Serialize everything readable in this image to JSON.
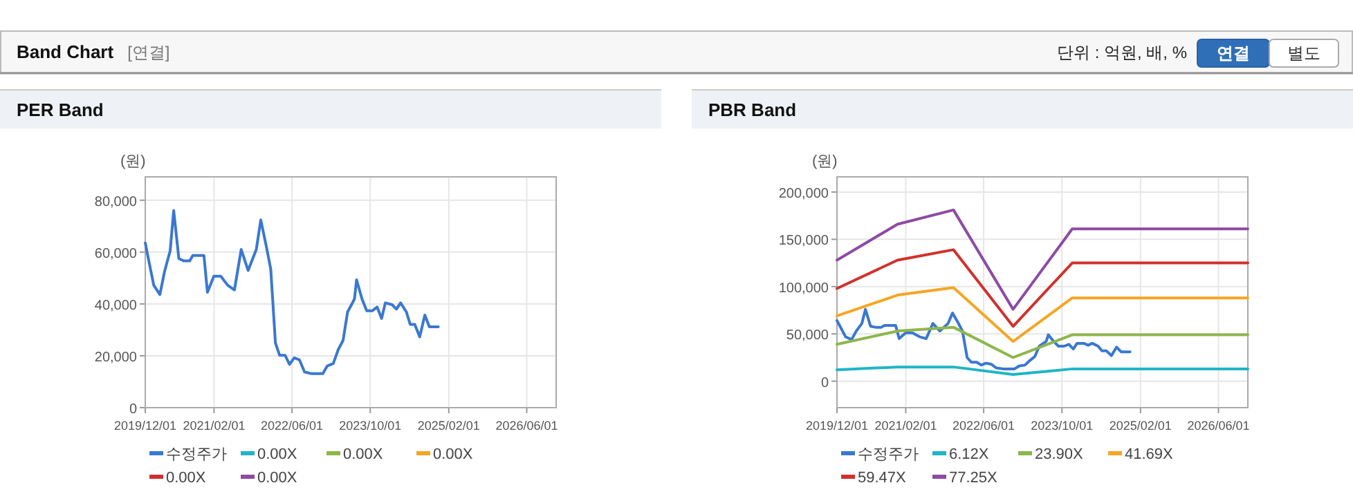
{
  "chart_data": [
    {
      "type": "other",
      "title": "Band Chart",
      "annotations": [
        "[연결]",
        "단위 : 억원, 배, %",
        "연결",
        "별도"
      ]
    },
    {
      "type": "line",
      "title": "PER Band",
      "ylabel": "(원)",
      "grid": true,
      "legend": "bottom",
      "xlim": [
        "2019-12-01",
        "2026-12-01"
      ],
      "xticks": [
        {
          "value": "2019-12-01",
          "label": "2019/12/01"
        },
        {
          "value": "2021-02-01",
          "label": "2021/02/01"
        },
        {
          "value": "2022-06-01",
          "label": "2022/06/01"
        },
        {
          "value": "2023-10-01",
          "label": "2023/10/01"
        },
        {
          "value": "2025-02-01",
          "label": "2025/02/01"
        },
        {
          "value": "2026-06-01",
          "label": "2026/06/01"
        }
      ],
      "ylim": [
        0,
        89000
      ],
      "yticks": [
        0,
        {
          "value": 20000,
          "label": "20,000"
        },
        {
          "value": 40000,
          "label": "40,000"
        },
        {
          "value": 60000,
          "label": "60,000"
        },
        {
          "value": 80000,
          "label": "80,000"
        }
      ],
      "series": [
        {
          "name": "수정주가",
          "color": "#3a78d0",
          "x": [
            "2019-12-01",
            "2019-12-20",
            "2020-01-23",
            "2020-03-01",
            "2020-03-30",
            "2020-05-04",
            "2020-05-26",
            "2020-06-27",
            "2020-07-28",
            "2020-09-03",
            "2020-09-22",
            "2020-11-30",
            "2020-12-22",
            "2021-01-31",
            "2021-03-15",
            "2021-04-27",
            "2021-06-08",
            "2021-07-20",
            "2021-09-01",
            "2021-10-22",
            "2021-11-19",
            "2021-12-23",
            "2022-01-20",
            "2022-02-18",
            "2022-03-16",
            "2022-04-19",
            "2022-05-17",
            "2022-06-15",
            "2022-07-18",
            "2022-08-18",
            "2022-09-30",
            "2022-12-10",
            "2023-01-07",
            "2023-02-13",
            "2023-03-16",
            "2023-04-15",
            "2023-05-13",
            "2023-06-25",
            "2023-07-08",
            "2023-08-11",
            "2023-09-09",
            "2023-10-15",
            "2023-11-13",
            "2023-12-11",
            "2024-01-03",
            "2024-02-14",
            "2024-03-12",
            "2024-04-07",
            "2024-05-13",
            "2024-06-06",
            "2024-07-04",
            "2024-08-04",
            "2024-09-05",
            "2024-10-03",
            "2024-11-28"
          ],
          "values": [
            63500,
            57500,
            47200,
            43600,
            52500,
            60500,
            76000,
            57500,
            56600,
            56600,
            58700,
            58700,
            44500,
            50700,
            50700,
            47200,
            45400,
            61000,
            52900,
            61000,
            72400,
            62300,
            53400,
            25000,
            20200,
            20200,
            16700,
            19200,
            18400,
            13800,
            13100,
            13100,
            16100,
            17000,
            22400,
            25900,
            36900,
            41900,
            49300,
            41900,
            37400,
            37400,
            38800,
            34400,
            40400,
            39700,
            38000,
            40400,
            36900,
            32100,
            32100,
            27300,
            35700,
            31200,
            31200
          ]
        },
        {
          "name": "0.00X",
          "color": "#1fb5c6"
        },
        {
          "name": "0.00X",
          "color": "#8db64b"
        },
        {
          "name": "0.00X",
          "color": "#f5a623"
        },
        {
          "name": "0.00X",
          "color": "#d0312d"
        },
        {
          "name": "0.00X",
          "color": "#8e4ba3"
        }
      ]
    },
    {
      "type": "line",
      "title": "PBR Band",
      "ylabel": "(원)",
      "grid": true,
      "legend": "bottom",
      "xlim": [
        "2019-12-01",
        "2026-12-01"
      ],
      "xticks": [
        {
          "value": "2019-12-01",
          "label": "2019/12/01"
        },
        {
          "value": "2021-02-01",
          "label": "2021/02/01"
        },
        {
          "value": "2022-06-01",
          "label": "2022/06/01"
        },
        {
          "value": "2023-10-01",
          "label": "2023/10/01"
        },
        {
          "value": "2025-02-01",
          "label": "2025/02/01"
        },
        {
          "value": "2026-06-01",
          "label": "2026/06/01"
        }
      ],
      "ylim": [
        -28000,
        216000
      ],
      "yticks": [
        0,
        {
          "value": 50000,
          "label": "50,000"
        },
        {
          "value": 100000,
          "label": "100,000"
        },
        {
          "value": 150000,
          "label": "150,000"
        },
        {
          "value": 200000,
          "label": "200,000"
        }
      ],
      "series": [
        {
          "name": "수정주가",
          "color": "#3a78d0",
          "x": [
            "2019-12-01",
            "2019-12-20",
            "2020-01-23",
            "2020-03-01",
            "2020-03-30",
            "2020-05-04",
            "2020-05-26",
            "2020-06-27",
            "2020-07-28",
            "2020-09-03",
            "2020-09-22",
            "2020-11-30",
            "2020-12-22",
            "2021-01-31",
            "2021-03-15",
            "2021-04-27",
            "2021-06-08",
            "2021-07-20",
            "2021-09-01",
            "2021-10-22",
            "2021-11-19",
            "2021-12-23",
            "2022-01-20",
            "2022-02-18",
            "2022-03-16",
            "2022-04-19",
            "2022-05-17",
            "2022-06-15",
            "2022-07-18",
            "2022-08-18",
            "2022-09-30",
            "2022-12-10",
            "2023-01-07",
            "2023-02-13",
            "2023-03-16",
            "2023-04-15",
            "2023-05-13",
            "2023-06-25",
            "2023-07-08",
            "2023-08-11",
            "2023-09-09",
            "2023-10-15",
            "2023-11-13",
            "2023-12-11",
            "2024-01-03",
            "2024-02-14",
            "2024-03-12",
            "2024-04-07",
            "2024-05-13",
            "2024-06-06",
            "2024-07-04",
            "2024-08-04",
            "2024-09-05",
            "2024-10-03",
            "2024-11-28"
          ],
          "values": [
            64000,
            58000,
            47000,
            44000,
            53000,
            61000,
            76000,
            58000,
            57000,
            57000,
            59000,
            59000,
            45000,
            51000,
            51000,
            47000,
            45000,
            61000,
            53000,
            61000,
            72000,
            62000,
            53000,
            25000,
            20000,
            20000,
            17000,
            19000,
            18000,
            14000,
            13000,
            13000,
            16000,
            17000,
            22000,
            26000,
            37000,
            42000,
            49000,
            42000,
            37000,
            37000,
            39000,
            34000,
            40000,
            40000,
            38000,
            40000,
            37000,
            32000,
            32000,
            27000,
            36000,
            31000,
            31000
          ]
        },
        {
          "name": "6.12X",
          "color": "#1fb5c6",
          "x": [
            "2019-12-01",
            "2020-12-12",
            "2021-11-25",
            "2022-12-01",
            "2023-12-04",
            "2026-12-01"
          ],
          "values": [
            12000,
            15000,
            15000,
            7000,
            13000,
            13000
          ]
        },
        {
          "name": "23.90X",
          "color": "#8db64b",
          "x": [
            "2019-12-01",
            "2020-12-12",
            "2021-11-25",
            "2022-12-01",
            "2023-12-04",
            "2026-12-01"
          ],
          "values": [
            39000,
            53000,
            57000,
            25000,
            49000,
            49000
          ]
        },
        {
          "name": "41.69X",
          "color": "#f5a623",
          "x": [
            "2019-12-01",
            "2020-12-12",
            "2021-11-25",
            "2022-12-01",
            "2023-12-04",
            "2026-12-01"
          ],
          "values": [
            69000,
            91000,
            99000,
            42000,
            88000,
            88000
          ]
        },
        {
          "name": "59.47X",
          "color": "#d0312d",
          "x": [
            "2019-12-01",
            "2020-12-12",
            "2021-11-25",
            "2022-12-01",
            "2023-12-04",
            "2026-12-01"
          ],
          "values": [
            98000,
            128000,
            139000,
            58000,
            125000,
            125000
          ]
        },
        {
          "name": "77.25X",
          "color": "#8e4ba3",
          "x": [
            "2019-12-01",
            "2020-12-12",
            "2021-11-25",
            "2022-12-01",
            "2023-12-04",
            "2026-12-01"
          ],
          "values": [
            128000,
            166000,
            181000,
            76000,
            161000,
            161000
          ]
        }
      ]
    }
  ]
}
